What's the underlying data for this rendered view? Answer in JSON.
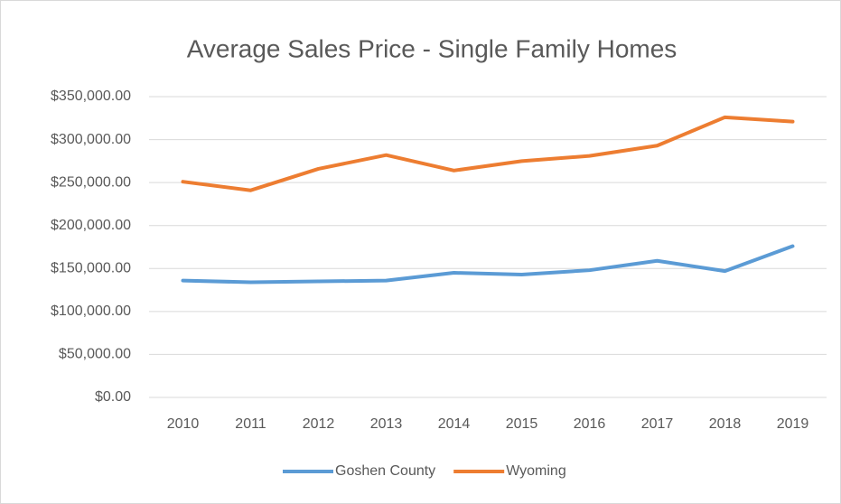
{
  "chart_data": {
    "type": "line",
    "title": "Average Sales Price - Single Family Homes",
    "categories": [
      "2010",
      "2011",
      "2012",
      "2013",
      "2014",
      "2015",
      "2016",
      "2017",
      "2018",
      "2019"
    ],
    "series": [
      {
        "name": "Goshen County",
        "color": "#5b9bd5",
        "values": [
          136000,
          134000,
          135000,
          136000,
          145000,
          143000,
          148000,
          159000,
          147000,
          176000
        ]
      },
      {
        "name": "Wyoming",
        "color": "#ed7d31",
        "values": [
          251000,
          241000,
          266000,
          282000,
          264000,
          275000,
          281000,
          293000,
          326000,
          321000
        ]
      }
    ],
    "ylim": [
      0,
      350000
    ],
    "yticks": [
      {
        "value": 0,
        "label": "$0.00"
      },
      {
        "value": 50000,
        "label": "$50,000.00"
      },
      {
        "value": 100000,
        "label": "$100,000.00"
      },
      {
        "value": 150000,
        "label": "$150,000.00"
      },
      {
        "value": 200000,
        "label": "$200,000.00"
      },
      {
        "value": 250000,
        "label": "$250,000.00"
      },
      {
        "value": 300000,
        "label": "$300,000.00"
      },
      {
        "value": 350000,
        "label": "$350,000.00"
      }
    ],
    "grid": true,
    "legend": "bottom"
  }
}
